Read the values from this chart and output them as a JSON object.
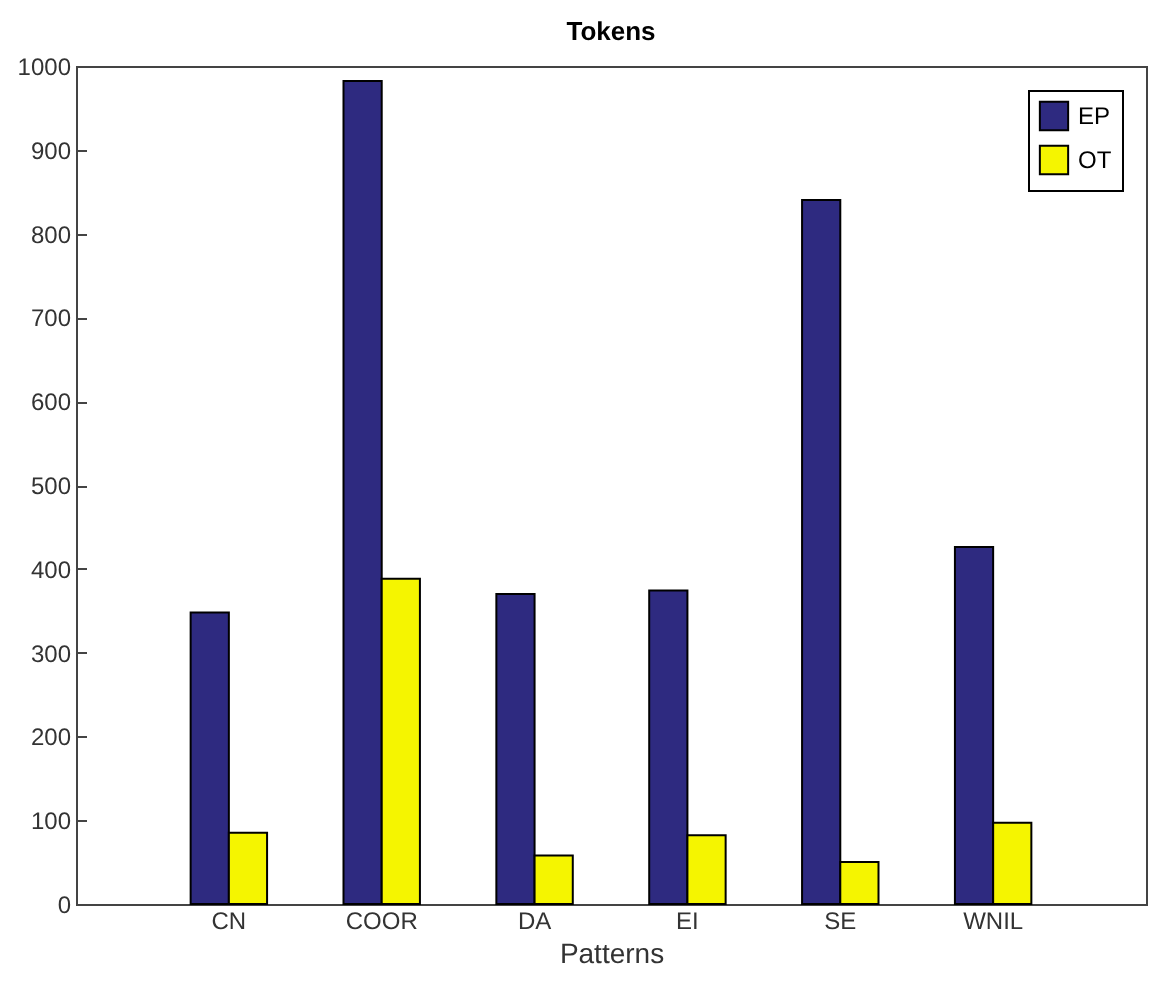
{
  "chart_data": {
    "type": "bar",
    "title": "Tokens",
    "xlabel": "Patterns",
    "categories": [
      "CN",
      "COOR",
      "DA",
      "EI",
      "SE",
      "WNIL"
    ],
    "series": [
      {
        "name": "EP",
        "color": "#2e2a80",
        "values": [
          348,
          982,
          370,
          374,
          840,
          426
        ]
      },
      {
        "name": "OT",
        "color": "#f5f500",
        "values": [
          85,
          388,
          58,
          82,
          50,
          97
        ]
      }
    ],
    "ylim": [
      0,
      1000
    ],
    "yticks": [
      0,
      100,
      200,
      300,
      400,
      500,
      600,
      700,
      800,
      900,
      1000
    ],
    "grid": false,
    "legend": "top right"
  }
}
